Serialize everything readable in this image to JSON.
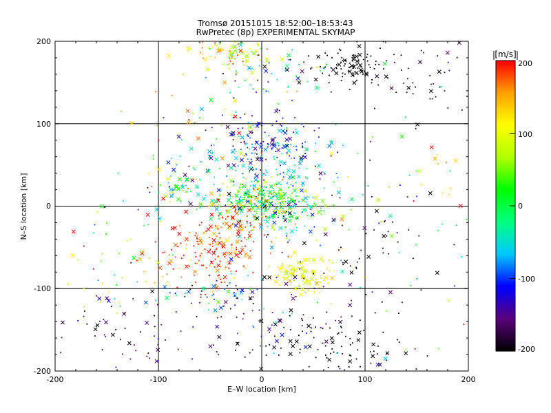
{
  "chart_data": {
    "type": "scatter",
    "title": "Tromsø 20151015 18:52:00–18:53:43",
    "subtitle": "RwPretec (8p) EXPERIMENTAL SKYMAP",
    "xlabel": "E–W location [km]",
    "ylabel": "N–S location [km]",
    "xlim": [
      -200,
      200
    ],
    "ylim": [
      -200,
      200
    ],
    "xticks": [
      "-200",
      "-100",
      "0",
      "100",
      "200"
    ],
    "yticks": [
      "200",
      "100",
      "0",
      "-100",
      "-200"
    ],
    "grid": true,
    "colorbar": {
      "unit": "[m/s]",
      "range": [
        -200,
        200
      ],
      "ticks": [
        "200",
        "100",
        "0",
        "-100",
        "-200"
      ],
      "colormap": [
        "#000000",
        "#5a007a",
        "#0000ff",
        "#00c8ff",
        "#00ff80",
        "#00ff00",
        "#b0ff00",
        "#ffff00",
        "#ffa000",
        "#ff0000"
      ]
    },
    "markers": {
      "cross": "x",
      "dot": "·"
    },
    "clusters": [
      {
        "x": 0,
        "y": 10,
        "sx": 25,
        "sy": 12,
        "n": 260,
        "v": 20,
        "vs": 60
      },
      {
        "x": 20,
        "y": -10,
        "sx": 25,
        "sy": 15,
        "n": 130,
        "v": -30,
        "vs": 70
      },
      {
        "x": -30,
        "y": -35,
        "sx": 18,
        "sy": 25,
        "n": 120,
        "v": 180,
        "vs": 30
      },
      {
        "x": -60,
        "y": -60,
        "sx": 22,
        "sy": 20,
        "n": 100,
        "v": 190,
        "vs": 40
      },
      {
        "x": 40,
        "y": -80,
        "sx": 15,
        "sy": 12,
        "n": 110,
        "v": 100,
        "vs": 25
      },
      {
        "x": 10,
        "y": 80,
        "sx": 25,
        "sy": 15,
        "n": 110,
        "v": -130,
        "vs": 40
      },
      {
        "x": 10,
        "y": 50,
        "sx": 40,
        "sy": 18,
        "n": 100,
        "v": -60,
        "vs": 40
      },
      {
        "x": -30,
        "y": 185,
        "sx": 20,
        "sy": 10,
        "n": 90,
        "v": 100,
        "vs": 50
      },
      {
        "x": 85,
        "y": 170,
        "sx": 15,
        "sy": 12,
        "n": 90,
        "v": -200,
        "vs": 5
      },
      {
        "x": 20,
        "y": 160,
        "sx": 30,
        "sy": 20,
        "n": 60,
        "v": -70,
        "vs": 80
      },
      {
        "x": 150,
        "y": 150,
        "sx": 35,
        "sy": 30,
        "n": 50,
        "v": -190,
        "vs": 20
      },
      {
        "x": 60,
        "y": -170,
        "sx": 50,
        "sy": 20,
        "n": 90,
        "v": -200,
        "vs": 5
      },
      {
        "x": -130,
        "y": -150,
        "sx": 40,
        "sy": 25,
        "n": 60,
        "v": -180,
        "vs": 30
      },
      {
        "x": -80,
        "y": 20,
        "sx": 10,
        "sy": 10,
        "n": 40,
        "v": 0,
        "vs": 90
      },
      {
        "x": -40,
        "y": -110,
        "sx": 25,
        "sy": 15,
        "n": 60,
        "v": -120,
        "vs": 70
      },
      {
        "x": 100,
        "y": -50,
        "sx": 40,
        "sy": 30,
        "n": 50,
        "v": -180,
        "vs": 30
      },
      {
        "x": -140,
        "y": -80,
        "sx": 40,
        "sy": 50,
        "n": 60,
        "v": 50,
        "vs": 120
      },
      {
        "x": 160,
        "y": 0,
        "sx": 35,
        "sy": 80,
        "n": 60,
        "v": 60,
        "vs": 100
      },
      {
        "x": -20,
        "y": 50,
        "sx": 50,
        "sy": 30,
        "n": 80,
        "v": -40,
        "vs": 70
      },
      {
        "x": 40,
        "y": -140,
        "sx": 40,
        "sy": 40,
        "n": 80,
        "v": -150,
        "vs": 70
      },
      {
        "x": -60,
        "y": 120,
        "sx": 50,
        "sy": 50,
        "n": 40,
        "v": 150,
        "vs": 60
      }
    ]
  }
}
